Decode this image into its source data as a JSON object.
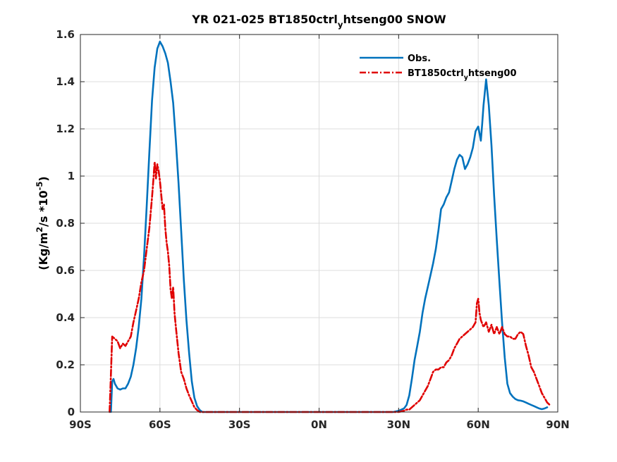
{
  "chart_data": {
    "type": "line",
    "title": "YR 021-025 BT1850ctrl_yhtseng00 SNOW",
    "title_parts": [
      "YR 021-025 BT1850ctrl",
      "y",
      "htseng00 SNOW"
    ],
    "ylabel": "(Kg/m^2/s *10^-5)",
    "ylabel_parts": [
      "(Kg/m",
      "2",
      "/s *10",
      "-5",
      ")"
    ],
    "xlabel": "",
    "xlim": [
      -90,
      90
    ],
    "ylim": [
      0,
      1.6
    ],
    "xticks": [
      -90,
      -60,
      -30,
      0,
      30,
      60,
      90
    ],
    "xtick_labels": [
      "90S",
      "60S",
      "30S",
      "0N",
      "30N",
      "60N",
      "90N"
    ],
    "yticks": [
      0,
      0.2,
      0.4,
      0.6,
      0.8,
      1.0,
      1.2,
      1.4,
      1.6
    ],
    "ytick_labels": [
      "0",
      "0.2",
      "0.4",
      "0.6",
      "0.8",
      "1",
      "1.2",
      "1.4",
      "1.6"
    ],
    "grid": true,
    "legend_position": "top-right",
    "series": [
      {
        "name": "Obs.",
        "legend_parts": [
          "Obs."
        ],
        "color": "#0072BD",
        "style": "solid",
        "points": [
          [
            -78.5,
            0.0
          ],
          [
            -78,
            0.13
          ],
          [
            -77.5,
            0.14
          ],
          [
            -77,
            0.12
          ],
          [
            -76,
            0.1
          ],
          [
            -75,
            0.095
          ],
          [
            -74,
            0.1
          ],
          [
            -73,
            0.1
          ],
          [
            -72,
            0.12
          ],
          [
            -71,
            0.15
          ],
          [
            -70,
            0.2
          ],
          [
            -69,
            0.27
          ],
          [
            -68,
            0.36
          ],
          [
            -67,
            0.48
          ],
          [
            -66,
            0.66
          ],
          [
            -65,
            0.87
          ],
          [
            -64,
            1.1
          ],
          [
            -63,
            1.32
          ],
          [
            -62,
            1.46
          ],
          [
            -61,
            1.54
          ],
          [
            -60,
            1.57
          ],
          [
            -59,
            1.55
          ],
          [
            -58,
            1.52
          ],
          [
            -57,
            1.48
          ],
          [
            -56,
            1.4
          ],
          [
            -55,
            1.31
          ],
          [
            -54,
            1.15
          ],
          [
            -53,
            0.97
          ],
          [
            -52,
            0.77
          ],
          [
            -51,
            0.56
          ],
          [
            -50,
            0.39
          ],
          [
            -49,
            0.25
          ],
          [
            -48,
            0.13
          ],
          [
            -47,
            0.06
          ],
          [
            -46,
            0.025
          ],
          [
            -45,
            0.008
          ],
          [
            -44,
            0.0
          ],
          [
            -40,
            0.0
          ],
          [
            -30,
            0.0
          ],
          [
            -20,
            0.0
          ],
          [
            -10,
            0.0
          ],
          [
            0,
            0.0
          ],
          [
            10,
            0.0
          ],
          [
            20,
            0.0
          ],
          [
            28,
            0.0
          ],
          [
            30,
            0.005
          ],
          [
            32,
            0.015
          ],
          [
            33,
            0.03
          ],
          [
            34,
            0.07
          ],
          [
            35,
            0.14
          ],
          [
            36,
            0.22
          ],
          [
            37,
            0.28
          ],
          [
            38,
            0.34
          ],
          [
            39,
            0.42
          ],
          [
            40,
            0.48
          ],
          [
            41,
            0.53
          ],
          [
            42,
            0.58
          ],
          [
            43,
            0.63
          ],
          [
            44,
            0.69
          ],
          [
            45,
            0.77
          ],
          [
            46,
            0.86
          ],
          [
            47,
            0.88
          ],
          [
            48,
            0.91
          ],
          [
            49,
            0.93
          ],
          [
            50,
            0.98
          ],
          [
            51,
            1.03
          ],
          [
            52,
            1.07
          ],
          [
            53,
            1.09
          ],
          [
            54,
            1.08
          ],
          [
            55,
            1.03
          ],
          [
            56,
            1.05
          ],
          [
            57,
            1.08
          ],
          [
            58,
            1.12
          ],
          [
            59,
            1.19
          ],
          [
            60,
            1.21
          ],
          [
            61,
            1.15
          ],
          [
            61.5,
            1.22
          ],
          [
            62,
            1.3
          ],
          [
            63,
            1.41
          ],
          [
            64,
            1.3
          ],
          [
            65,
            1.13
          ],
          [
            66,
            0.92
          ],
          [
            67,
            0.73
          ],
          [
            68,
            0.55
          ],
          [
            69,
            0.38
          ],
          [
            70,
            0.23
          ],
          [
            71,
            0.12
          ],
          [
            72,
            0.08
          ],
          [
            73,
            0.065
          ],
          [
            74,
            0.055
          ],
          [
            75,
            0.05
          ],
          [
            76,
            0.048
          ],
          [
            77,
            0.045
          ],
          [
            78,
            0.04
          ],
          [
            79,
            0.035
          ],
          [
            80,
            0.03
          ],
          [
            81,
            0.025
          ],
          [
            82,
            0.02
          ],
          [
            83,
            0.015
          ],
          [
            84,
            0.012
          ],
          [
            85,
            0.015
          ],
          [
            86,
            0.02
          ]
        ]
      },
      {
        "name": "BT1850ctrl_yhtseng00",
        "legend_parts": [
          "BT1850ctrl",
          "y",
          "htseng00"
        ],
        "color": "#E00000",
        "style": "dashed",
        "points": [
          [
            -79,
            0.0
          ],
          [
            -78.5,
            0.16
          ],
          [
            -78,
            0.32
          ],
          [
            -77,
            0.31
          ],
          [
            -76,
            0.3
          ],
          [
            -75,
            0.27
          ],
          [
            -74,
            0.29
          ],
          [
            -73,
            0.28
          ],
          [
            -72,
            0.3
          ],
          [
            -71,
            0.32
          ],
          [
            -70,
            0.38
          ],
          [
            -69,
            0.43
          ],
          [
            -68,
            0.48
          ],
          [
            -67,
            0.55
          ],
          [
            -66,
            0.6
          ],
          [
            -65,
            0.69
          ],
          [
            -64,
            0.78
          ],
          [
            -63,
            0.91
          ],
          [
            -62.5,
            0.98
          ],
          [
            -62,
            1.06
          ],
          [
            -61.5,
            0.99
          ],
          [
            -61,
            1.05
          ],
          [
            -60.5,
            1.02
          ],
          [
            -60,
            0.98
          ],
          [
            -59.5,
            0.92
          ],
          [
            -59,
            0.86
          ],
          [
            -58.5,
            0.88
          ],
          [
            -58,
            0.78
          ],
          [
            -57.5,
            0.72
          ],
          [
            -57,
            0.68
          ],
          [
            -56.5,
            0.62
          ],
          [
            -56,
            0.52
          ],
          [
            -55.5,
            0.48
          ],
          [
            -55,
            0.53
          ],
          [
            -54.5,
            0.42
          ],
          [
            -54,
            0.36
          ],
          [
            -53,
            0.25
          ],
          [
            -52,
            0.17
          ],
          [
            -51,
            0.14
          ],
          [
            -50,
            0.1
          ],
          [
            -49,
            0.07
          ],
          [
            -48,
            0.045
          ],
          [
            -47,
            0.02
          ],
          [
            -46,
            0.008
          ],
          [
            -45,
            0.0
          ],
          [
            -40,
            0.0
          ],
          [
            -30,
            0.0
          ],
          [
            -20,
            0.0
          ],
          [
            -10,
            0.0
          ],
          [
            0,
            0.0
          ],
          [
            10,
            0.0
          ],
          [
            20,
            0.0
          ],
          [
            30,
            0.0
          ],
          [
            32,
            0.005
          ],
          [
            33,
            0.01
          ],
          [
            34,
            0.01
          ],
          [
            35,
            0.02
          ],
          [
            36,
            0.03
          ],
          [
            37,
            0.04
          ],
          [
            38,
            0.05
          ],
          [
            39,
            0.07
          ],
          [
            40,
            0.09
          ],
          [
            41,
            0.11
          ],
          [
            42,
            0.14
          ],
          [
            43,
            0.17
          ],
          [
            44,
            0.18
          ],
          [
            45,
            0.18
          ],
          [
            46,
            0.19
          ],
          [
            47,
            0.19
          ],
          [
            48,
            0.21
          ],
          [
            49,
            0.22
          ],
          [
            50,
            0.24
          ],
          [
            51,
            0.27
          ],
          [
            52,
            0.29
          ],
          [
            53,
            0.31
          ],
          [
            54,
            0.32
          ],
          [
            55,
            0.33
          ],
          [
            56,
            0.34
          ],
          [
            57,
            0.35
          ],
          [
            58,
            0.36
          ],
          [
            59,
            0.38
          ],
          [
            59.5,
            0.46
          ],
          [
            60,
            0.48
          ],
          [
            60.5,
            0.42
          ],
          [
            61,
            0.39
          ],
          [
            62,
            0.36
          ],
          [
            63,
            0.38
          ],
          [
            64,
            0.34
          ],
          [
            65,
            0.37
          ],
          [
            66,
            0.33
          ],
          [
            67,
            0.36
          ],
          [
            68,
            0.33
          ],
          [
            69,
            0.36
          ],
          [
            70,
            0.33
          ],
          [
            71,
            0.32
          ],
          [
            72,
            0.32
          ],
          [
            73,
            0.31
          ],
          [
            74,
            0.31
          ],
          [
            75,
            0.33
          ],
          [
            76,
            0.34
          ],
          [
            77,
            0.33
          ],
          [
            78,
            0.28
          ],
          [
            79,
            0.24
          ],
          [
            80,
            0.19
          ],
          [
            81,
            0.17
          ],
          [
            82,
            0.14
          ],
          [
            83,
            0.11
          ],
          [
            84,
            0.08
          ],
          [
            85,
            0.06
          ],
          [
            86,
            0.04
          ],
          [
            87,
            0.03
          ]
        ]
      }
    ]
  }
}
